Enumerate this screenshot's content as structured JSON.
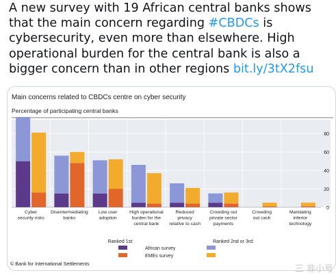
{
  "tweet": {
    "text_1": "A new survey with 19 African central banks shows that the main concern regarding ",
    "hashtag": "#CBDCs",
    "text_2": " is cybersecurity, even more than elsewhere. High operational burden for the central bank is also a bigger concern than in other regions ",
    "link": "bit.ly/3tX2fsu"
  },
  "chart_data": {
    "type": "bar",
    "title": "Main concerns related to CBDCs centre on cyber security",
    "subtitle": "Percentage of participating central banks",
    "categories": [
      [
        "Cyber",
        "security risks"
      ],
      [
        "Disentermediating",
        "banks"
      ],
      [
        "Low user",
        "adoption"
      ],
      [
        "High operational",
        "burden for the",
        "central bank"
      ],
      [
        "Reduced",
        "privacy",
        "relative to cash"
      ],
      [
        "Crowding out",
        "private sector",
        "payments"
      ],
      [
        "Crowding",
        "out cash"
      ],
      [
        "Mandating",
        "inferior",
        "technology"
      ]
    ],
    "series": [
      {
        "name": "African survey",
        "group": "Ranked 1st:",
        "color": "#5b3a8c",
        "values": [
          50,
          15,
          15,
          5,
          5,
          5,
          0,
          0
        ]
      },
      {
        "name": "African survey",
        "group": "Ranked 2nd or 3rd:",
        "color": "#8b97d6",
        "values": [
          48,
          41,
          36,
          41,
          21,
          10,
          0,
          0
        ]
      },
      {
        "name": "EMEs survey",
        "group": "Ranked 1st:",
        "color": "#e0662a",
        "values": [
          16,
          48,
          20,
          4,
          4,
          4,
          1,
          1
        ]
      },
      {
        "name": "EMEs survey",
        "group": "Ranked 2nd or 3rd:",
        "color": "#f2ab2c",
        "values": [
          65,
          12,
          32,
          33,
          17,
          12,
          4,
          4
        ]
      }
    ],
    "ylim": [
      0,
      100
    ],
    "yticks": [
      0,
      20,
      40,
      60,
      80
    ],
    "legend": {
      "group_1_label": "Ranked 1st:",
      "group_2_label": "Ranked 2nd or 3rd:",
      "row_1": "African survey",
      "row_2": "EMEs survey"
    },
    "source": "© Bank for International Settlements",
    "grid": true
  },
  "watermark": "三 非小号"
}
